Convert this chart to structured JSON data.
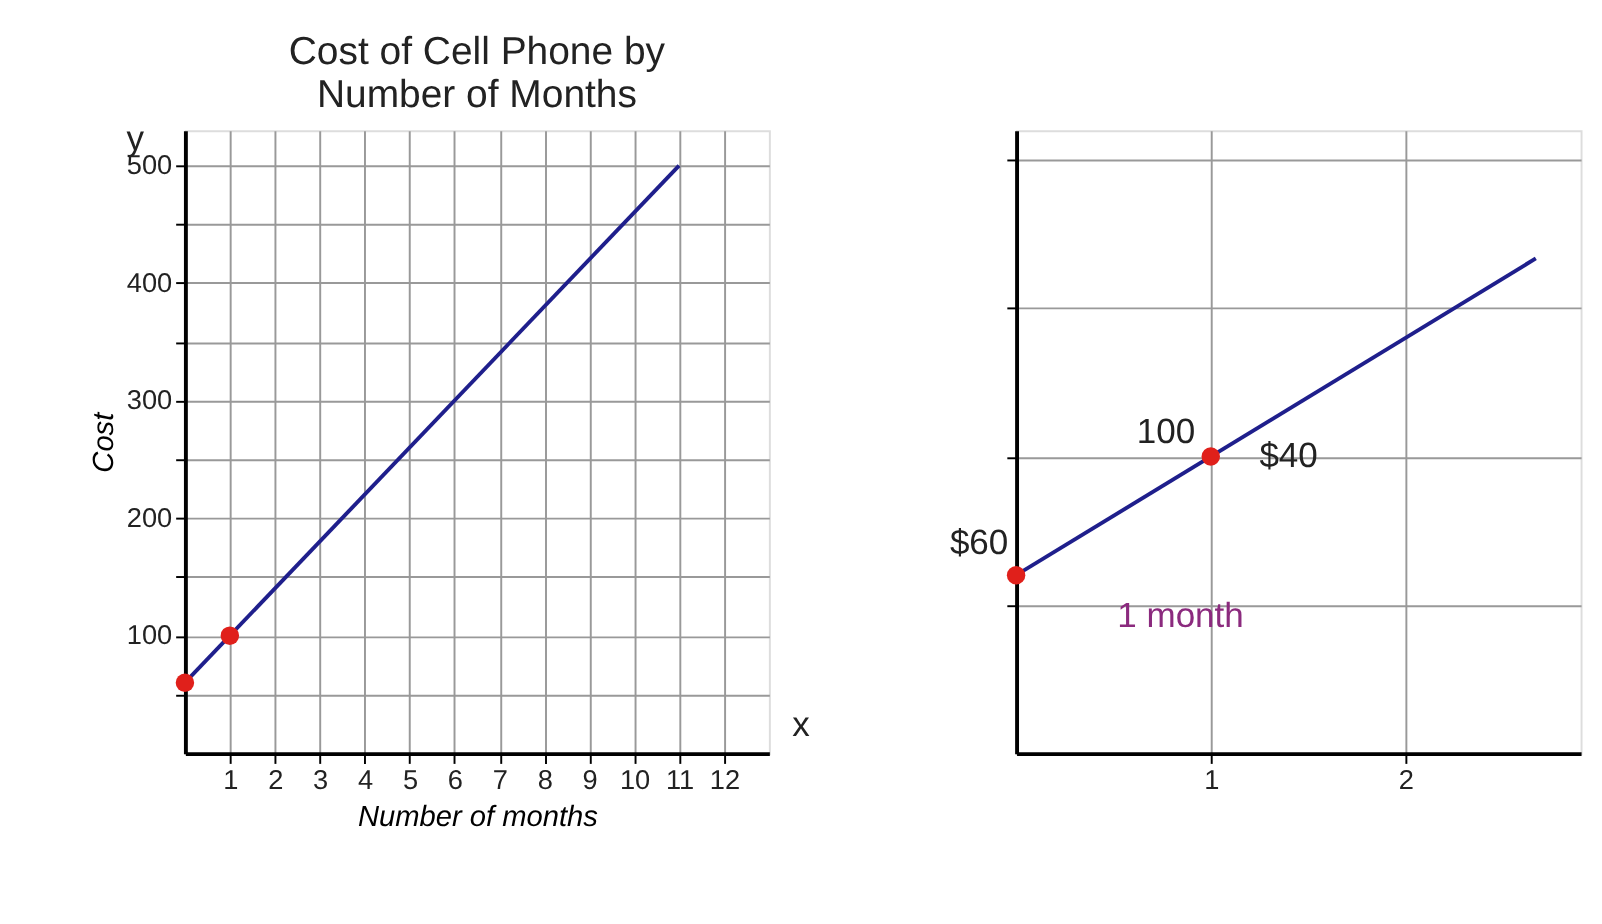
{
  "chart_data": [
    {
      "type": "line",
      "title": "Cost of Cell Phone by Number of Months",
      "xlabel": "Number of months",
      "ylabel": "Cost",
      "series": [
        {
          "x": [
            0,
            11
          ],
          "values": [
            60,
            500
          ],
          "color": "#1f1f8c",
          "marker": "none"
        },
        {
          "type": "scatter",
          "x": [
            0,
            1
          ],
          "values": [
            60,
            100
          ],
          "color": "#e0201b",
          "marker": "circle"
        }
      ],
      "xlim": [
        0,
        13
      ],
      "xticks": [
        1,
        2,
        3,
        4,
        5,
        6,
        7,
        8,
        9,
        10,
        11,
        12
      ],
      "ylim": [
        0,
        530
      ],
      "yticks": [
        {
          "value": 50,
          "label": null
        },
        100,
        {
          "value": 150,
          "label": null
        },
        200,
        {
          "value": 250,
          "label": null
        },
        300,
        {
          "value": 350,
          "label": null
        },
        400,
        {
          "value": 450,
          "label": null
        },
        500
      ],
      "grid": true,
      "annotations": [
        "x",
        "y"
      ]
    },
    {
      "type": "line",
      "series": [
        {
          "x": [
            0,
            2.67
          ],
          "values": [
            60,
            166.8
          ],
          "color": "#1f1f8c",
          "marker": "none"
        },
        {
          "type": "scatter",
          "x": [
            0,
            1
          ],
          "values": [
            60,
            100
          ],
          "color": "#e0201b",
          "marker": "circle",
          "value_labels": [
            "$60",
            "100"
          ]
        }
      ],
      "xlim": [
        0,
        2.9
      ],
      "xticks": [
        1,
        2
      ],
      "ylim": [
        0,
        210
      ],
      "yticks": [
        {
          "value": 50,
          "label": null
        },
        {
          "value": 100,
          "label": null
        },
        {
          "value": 150,
          "label": null
        },
        {
          "value": 200,
          "label": null
        }
      ],
      "grid": true,
      "annotations": [
        "$40",
        "1 month"
      ]
    }
  ]
}
